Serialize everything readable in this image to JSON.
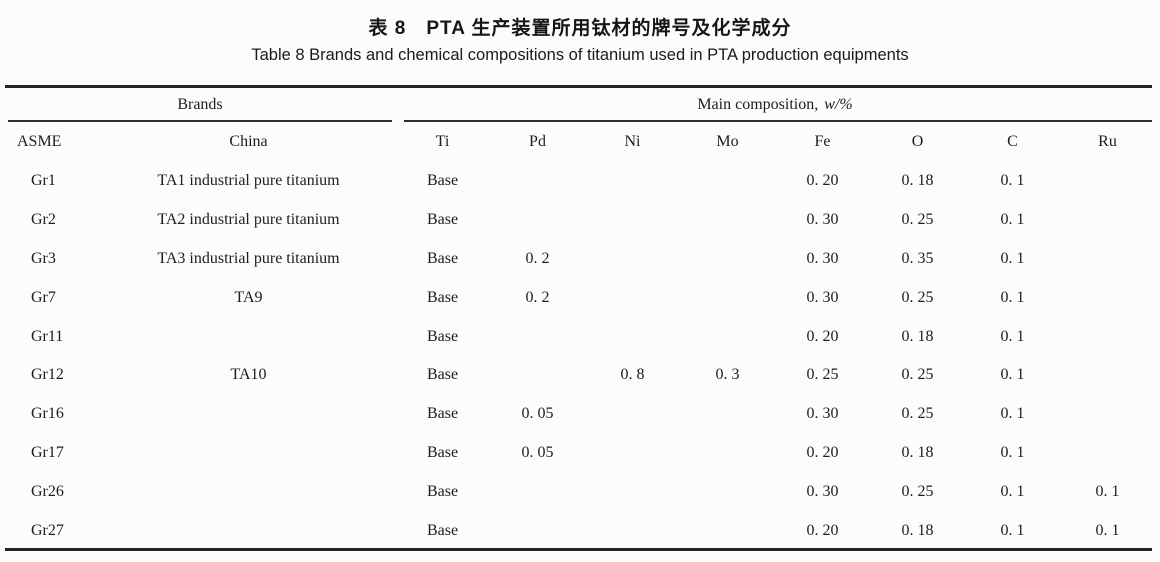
{
  "captions": {
    "chinese": "表 8　PTA 生产装置所用钛材的牌号及化学成分",
    "english": "Table 8   Brands and chemical compositions of titanium used in PTA production equipments"
  },
  "table": {
    "group_headers": {
      "brands": "Brands",
      "composition": "Main composition,",
      "composition_unit": "w/%"
    },
    "columns": [
      "ASME",
      "China",
      "Ti",
      "Pd",
      "Ni",
      "Mo",
      "Fe",
      "O",
      "C",
      "Ru"
    ],
    "keys": [
      "asme",
      "china",
      "ti",
      "pd",
      "ni",
      "mo",
      "fe",
      "o",
      "c",
      "ru"
    ],
    "rows": [
      [
        "Gr1",
        "TA1 industrial pure titanium",
        "Base",
        "",
        "",
        "",
        "0. 20",
        "0. 18",
        "0. 1",
        ""
      ],
      [
        "Gr2",
        "TA2 industrial pure titanium",
        "Base",
        "",
        "",
        "",
        "0. 30",
        "0. 25",
        "0. 1",
        ""
      ],
      [
        "Gr3",
        "TA3 industrial pure titanium",
        "Base",
        "0. 2",
        "",
        "",
        "0. 30",
        "0. 35",
        "0. 1",
        ""
      ],
      [
        "Gr7",
        "TA9",
        "Base",
        "0. 2",
        "",
        "",
        "0. 30",
        "0. 25",
        "0. 1",
        ""
      ],
      [
        "Gr11",
        "",
        "Base",
        "",
        "",
        "",
        "0. 20",
        "0. 18",
        "0. 1",
        ""
      ],
      [
        "Gr12",
        "TA10",
        "Base",
        "",
        "0. 8",
        "0. 3",
        "0. 25",
        "0. 25",
        "0. 1",
        ""
      ],
      [
        "Gr16",
        "",
        "Base",
        "0. 05",
        "",
        "",
        "0. 30",
        "0. 25",
        "0. 1",
        ""
      ],
      [
        "Gr17",
        "",
        "Base",
        "0. 05",
        "",
        "",
        "0. 20",
        "0. 18",
        "0. 1",
        ""
      ],
      [
        "Gr26",
        "",
        "Base",
        "",
        "",
        "",
        "0. 30",
        "0. 25",
        "0. 1",
        "0. 1"
      ],
      [
        "Gr27",
        "",
        "Base",
        "",
        "",
        "",
        "0. 20",
        "0. 18",
        "0. 1",
        "0. 1"
      ]
    ]
  }
}
